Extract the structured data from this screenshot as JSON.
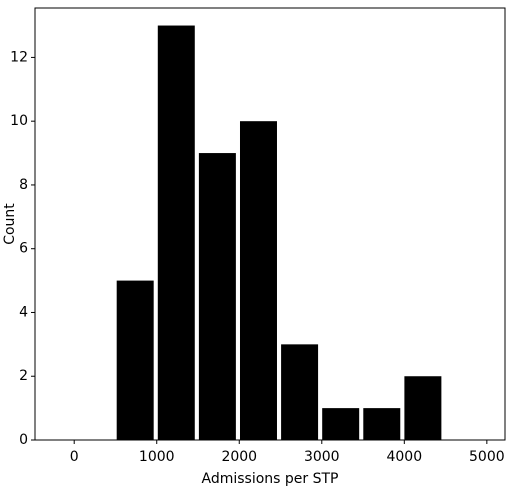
{
  "chart_data": {
    "type": "histogram",
    "xlabel": "Admissions per STP",
    "ylabel": "Count",
    "bins": [
      490,
      988,
      1486,
      1984,
      2482,
      2980,
      3478,
      3976,
      4474
    ],
    "values": [
      5,
      13,
      9,
      10,
      3,
      1,
      1,
      2
    ],
    "color": "#000000",
    "xlim": [
      -475,
      5220
    ],
    "ylim": [
      0,
      13.55
    ],
    "xticks": [
      0,
      1000,
      2000,
      3000,
      4000,
      5000
    ],
    "yticks": [
      0,
      2,
      4,
      6,
      8,
      10,
      12
    ]
  }
}
